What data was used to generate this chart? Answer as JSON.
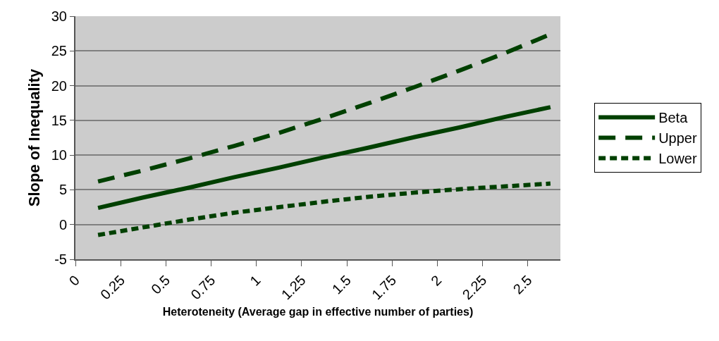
{
  "chart_data": {
    "type": "line",
    "xlabel": "Heteroteneity (Average gap in effective number of parties)",
    "ylabel": "Slope of Inequality",
    "x": [
      0.125,
      0.375,
      0.625,
      0.875,
      1.125,
      1.375,
      1.625,
      1.875,
      2.125,
      2.375,
      2.625
    ],
    "xlim": [
      0,
      2.68
    ],
    "xticks": [
      0,
      0.25,
      0.5,
      0.75,
      1,
      1.25,
      1.5,
      1.75,
      2,
      2.25,
      2.5
    ],
    "ylim": [
      -5,
      30
    ],
    "yticks": [
      -5,
      0,
      5,
      10,
      15,
      20,
      25,
      30
    ],
    "grid": "y",
    "legend": "right",
    "marker": "none",
    "series": [
      {
        "name": "Beta",
        "color": "#004000",
        "line_style": "solid",
        "values": [
          2.4,
          3.9,
          5.3,
          6.8,
          8.2,
          9.7,
          11.1,
          12.6,
          14,
          15.5,
          16.9
        ]
      },
      {
        "name": "Upper",
        "color": "#004000",
        "line_style": "dashed",
        "values": [
          6.2,
          7.8,
          9.5,
          11.3,
          13.2,
          15.3,
          17.5,
          19.8,
          22.2,
          24.7,
          27.4
        ]
      },
      {
        "name": "Lower",
        "color": "#004000",
        "line_style": "dotted",
        "values": [
          -1.5,
          -0.4,
          0.7,
          1.7,
          2.5,
          3.3,
          4,
          4.6,
          5.1,
          5.5,
          5.9
        ]
      }
    ]
  }
}
